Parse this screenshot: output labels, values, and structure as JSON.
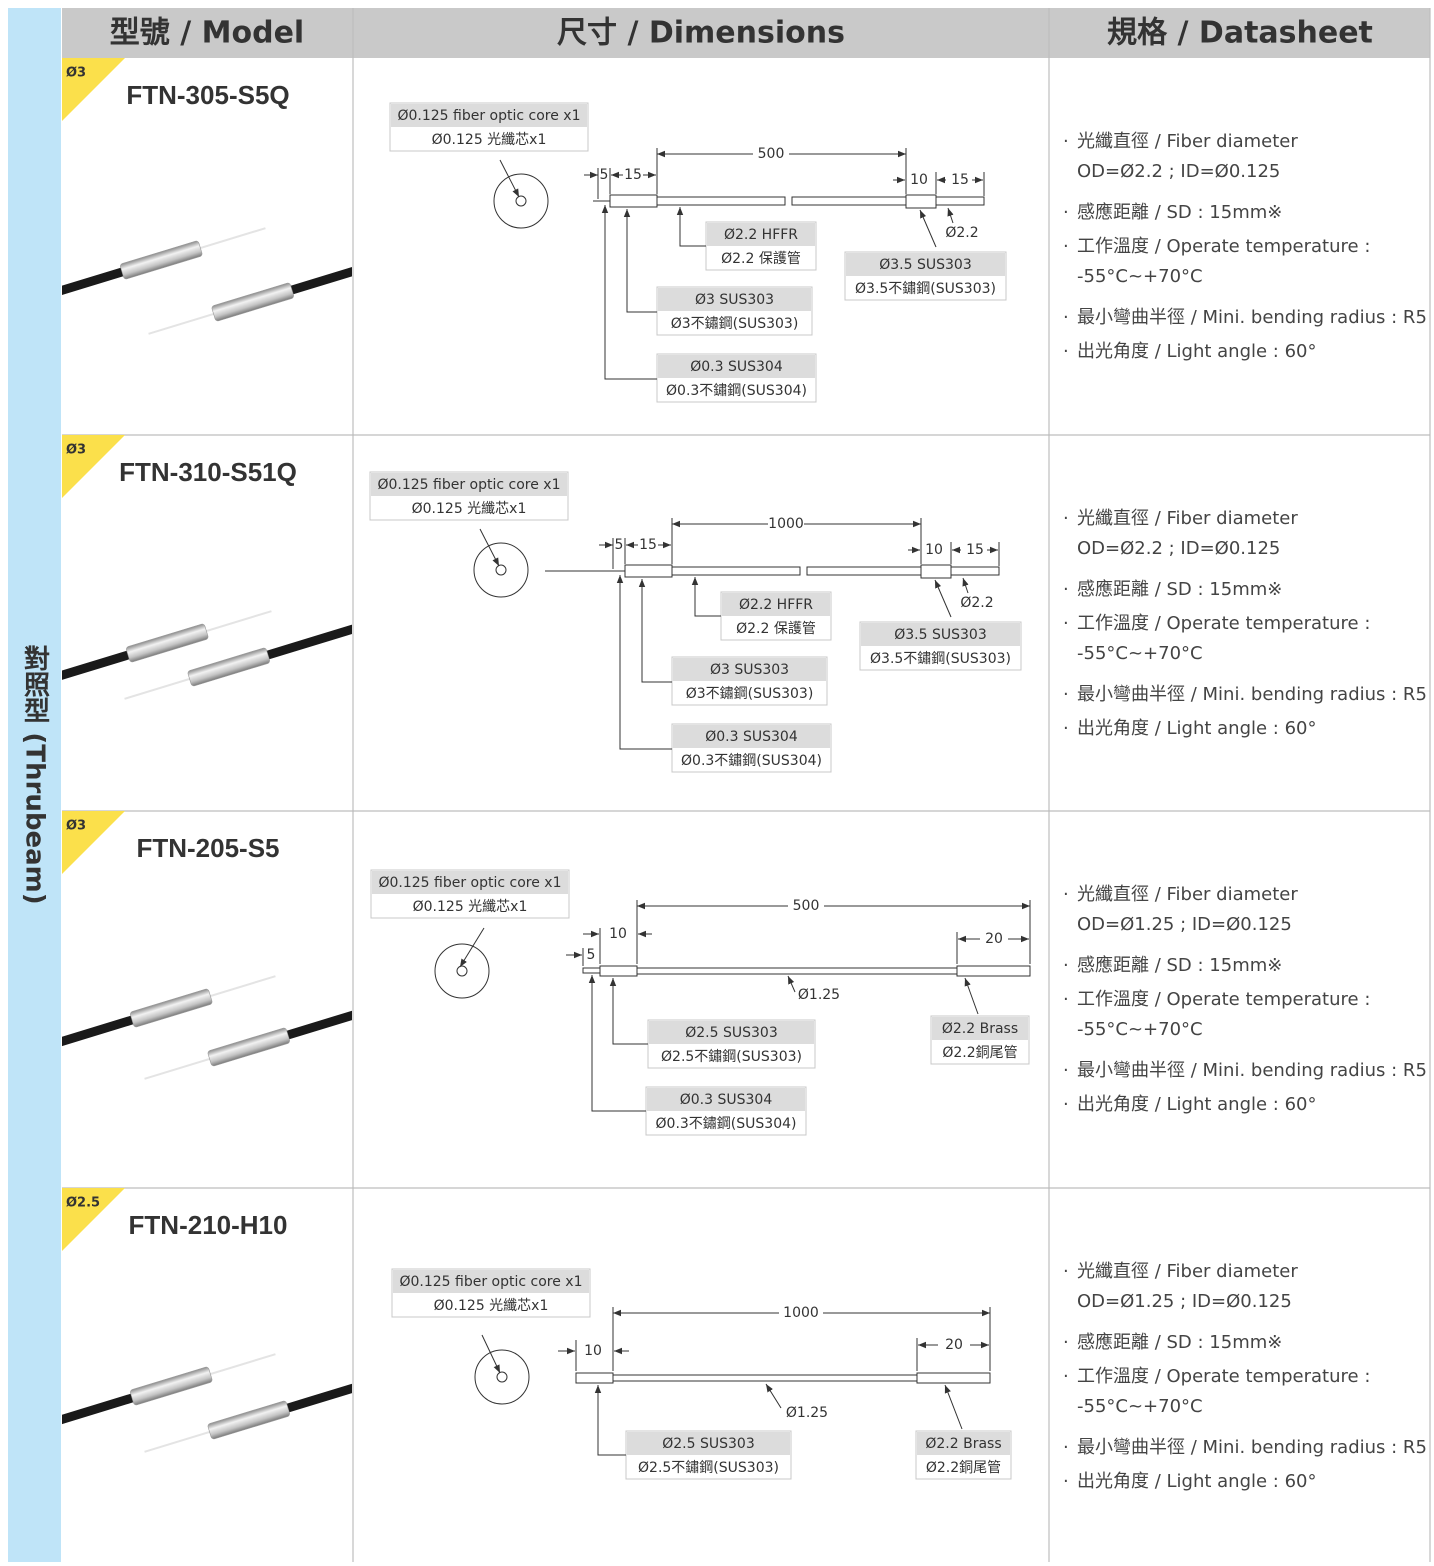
{
  "side_label": "對照型 (Thrubeam)",
  "header": {
    "model": "型號 / Model",
    "dimensions": "尺寸 / Dimensions",
    "datasheet": "規格 / Datasheet"
  },
  "rows": [
    {
      "badge": "Ø3",
      "model": "FTN-305-S5Q",
      "core": [
        "Ø0.125 fiber optic core x1",
        "Ø0.125 光纖芯x1"
      ],
      "dims": [
        "5",
        "15",
        "500",
        "10",
        "15",
        "Ø2.2"
      ],
      "callouts": [
        [
          "Ø2.2 HFFR",
          "Ø2.2 保護管"
        ],
        [
          "Ø3.5 SUS303",
          "Ø3.5不鏽鋼(SUS303)"
        ],
        [
          "Ø3 SUS303",
          "Ø3不鏽鋼(SUS303)"
        ],
        [
          "Ø0.3 SUS304",
          "Ø0.3不鏽鋼(SUS304)"
        ]
      ],
      "specs": [
        [
          "光纖直徑 / Fiber diameter",
          "OD=Ø2.2 ; ID=Ø0.125"
        ],
        [
          "感應距離 / SD : 15mm※"
        ],
        [
          "工作溫度 / Operate temperature :",
          "-55°C~+70°C"
        ],
        [
          "最小彎曲半徑 / Mini. bending radius : R5"
        ],
        [
          "出光角度 / Light angle : 60°"
        ]
      ]
    },
    {
      "badge": "Ø3",
      "model": "FTN-310-S51Q",
      "core": [
        "Ø0.125 fiber optic core x1",
        "Ø0.125 光纖芯x1"
      ],
      "dims": [
        "5",
        "15",
        "1000",
        "10",
        "15",
        "Ø2.2"
      ],
      "callouts": [
        [
          "Ø2.2 HFFR",
          "Ø2.2 保護管"
        ],
        [
          "Ø3.5 SUS303",
          "Ø3.5不鏽鋼(SUS303)"
        ],
        [
          "Ø3 SUS303",
          "Ø3不鏽鋼(SUS303)"
        ],
        [
          "Ø0.3 SUS304",
          "Ø0.3不鏽鋼(SUS304)"
        ]
      ],
      "specs": [
        [
          "光纖直徑 / Fiber diameter",
          "OD=Ø2.2 ; ID=Ø0.125"
        ],
        [
          "感應距離 / SD : 15mm※"
        ],
        [
          "工作溫度 / Operate temperature :",
          "-55°C~+70°C"
        ],
        [
          "最小彎曲半徑 / Mini. bending radius : R5"
        ],
        [
          "出光角度 / Light angle : 60°"
        ]
      ]
    },
    {
      "badge": "Ø3",
      "model": "FTN-205-S5",
      "core": [
        "Ø0.125 fiber optic core x1",
        "Ø0.125 光纖芯x1"
      ],
      "dims": [
        "500",
        "10",
        "5",
        "20",
        "Ø1.25"
      ],
      "callouts": [
        [
          "Ø2.5 SUS303",
          "Ø2.5不鏽鋼(SUS303)"
        ],
        [
          "Ø0.3 SUS304",
          "Ø0.3不鏽鋼(SUS304)"
        ],
        [
          "Ø2.2 Brass",
          "Ø2.2銅尾管"
        ]
      ],
      "specs": [
        [
          "光纖直徑 / Fiber diameter",
          "OD=Ø1.25 ; ID=Ø0.125"
        ],
        [
          "感應距離 / SD : 15mm※"
        ],
        [
          "工作溫度 / Operate temperature :",
          "-55°C~+70°C"
        ],
        [
          "最小彎曲半徑 / Mini. bending radius : R5"
        ],
        [
          "出光角度 / Light angle : 60°"
        ]
      ]
    },
    {
      "badge": "Ø2.5",
      "model": "FTN-210-H10",
      "core": [
        "Ø0.125 fiber optic core x1",
        "Ø0.125 光纖芯x1"
      ],
      "dims": [
        "1000",
        "10",
        "20",
        "Ø1.25"
      ],
      "callouts": [
        [
          "Ø2.5 SUS303",
          "Ø2.5不鏽鋼(SUS303)"
        ],
        [
          "Ø2.2 Brass",
          "Ø2.2銅尾管"
        ]
      ],
      "specs": [
        [
          "光纖直徑 / Fiber diameter",
          "OD=Ø1.25 ; ID=Ø0.125"
        ],
        [
          "感應距離 / SD : 15mm※"
        ],
        [
          "工作溫度 / Operate temperature :",
          "-55°C~+70°C"
        ],
        [
          "最小彎曲半徑 / Mini. bending radius : R5"
        ],
        [
          "出光角度 / Light angle : 60°"
        ]
      ]
    }
  ]
}
